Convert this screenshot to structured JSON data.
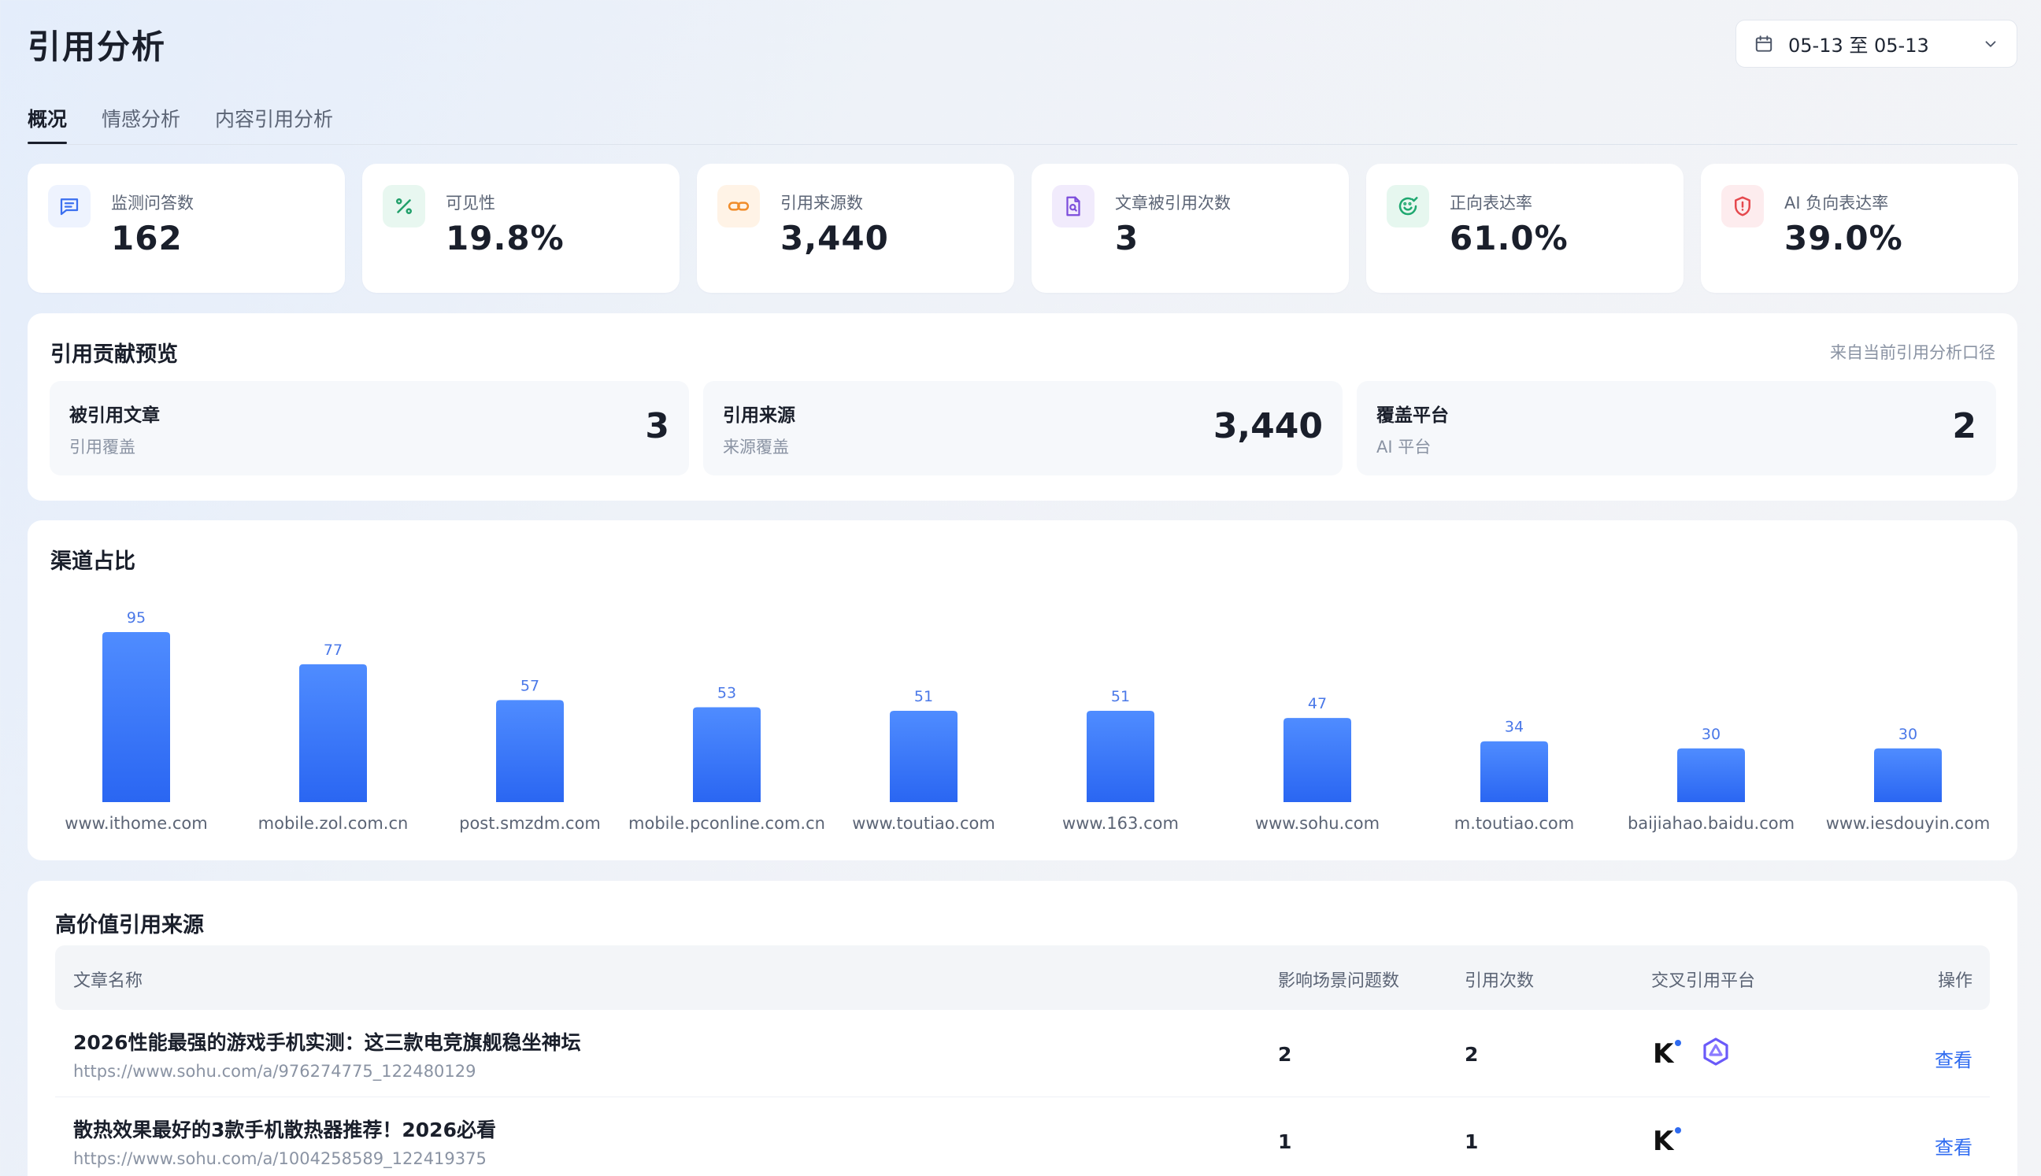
{
  "page": {
    "title": "引用分析",
    "date_range": "05-13 至 05-13"
  },
  "tabs": [
    "概况",
    "情感分析",
    "内容引用分析"
  ],
  "cards": [
    {
      "label": "监测问答数",
      "value": "162",
      "icon": "chat-lines-icon",
      "color": "#3b6ff0",
      "bg": "#eef3fe"
    },
    {
      "label": "可见性",
      "value": "19.8%",
      "icon": "percent-icon",
      "color": "#22a06b",
      "bg": "#e8f7f0"
    },
    {
      "label": "引用来源数",
      "value": "3,440",
      "icon": "link-icon",
      "color": "#f08c2a",
      "bg": "#fff3e6"
    },
    {
      "label": "文章被引用次数",
      "value": "3",
      "icon": "document-search-icon",
      "color": "#7c4ddb",
      "bg": "#f1ebfc"
    },
    {
      "label": "正向表达率",
      "value": "61.0%",
      "icon": "smile-check-icon",
      "color": "#1fa870",
      "bg": "#e6f7ef"
    },
    {
      "label": "AI 负向表达率",
      "value": "39.0%",
      "icon": "shield-alert-icon",
      "color": "#e5484d",
      "bg": "#fdecee"
    }
  ],
  "contribution": {
    "title": "引用贡献预览",
    "note": "来自当前引用分析口径",
    "items": [
      {
        "title": "被引用文章",
        "sub": "引用覆盖",
        "value": "3"
      },
      {
        "title": "引用来源",
        "sub": "来源覆盖",
        "value": "3,440"
      },
      {
        "title": "覆盖平台",
        "sub": "AI 平台",
        "value": "2"
      }
    ]
  },
  "channel": {
    "title": "渠道占比"
  },
  "chart_data": {
    "type": "bar",
    "categories": [
      "www.ithome.com",
      "mobile.zol.com.cn",
      "post.smzdm.com",
      "mobile.pconline.com.cn",
      "www.toutiao.com",
      "www.163.com",
      "www.sohu.com",
      "m.toutiao.com",
      "baijiahao.baidu.com",
      "www.iesdouyin.com"
    ],
    "values": [
      95,
      77,
      57,
      53,
      51,
      51,
      47,
      34,
      30,
      30
    ],
    "title": "渠道占比",
    "bar_color": "#2f6bf0",
    "label_color": "#4a78e8",
    "grid": false
  },
  "sources": {
    "title": "高价值引用来源",
    "columns": {
      "name": "文章名称",
      "questions": "影响场景问题数",
      "count": "引用次数",
      "platforms": "交叉引用平台",
      "action": "操作"
    },
    "rows": [
      {
        "title": "2026性能最强的游戏手机实测：这三款电竞旗舰稳坐神坛",
        "url": "https://www.sohu.com/a/976274775_122480129",
        "questions": "2",
        "count": "2",
        "platforms": [
          "kimi-logo-icon",
          "tongyi-logo-icon"
        ],
        "action": "查看"
      },
      {
        "title": "散热效果最好的3款手机散热器推荐！2026必看",
        "url": "https://www.sohu.com/a/1004258589_122419375",
        "questions": "1",
        "count": "1",
        "platforms": [
          "kimi-logo-icon"
        ],
        "action": "查看"
      }
    ]
  }
}
